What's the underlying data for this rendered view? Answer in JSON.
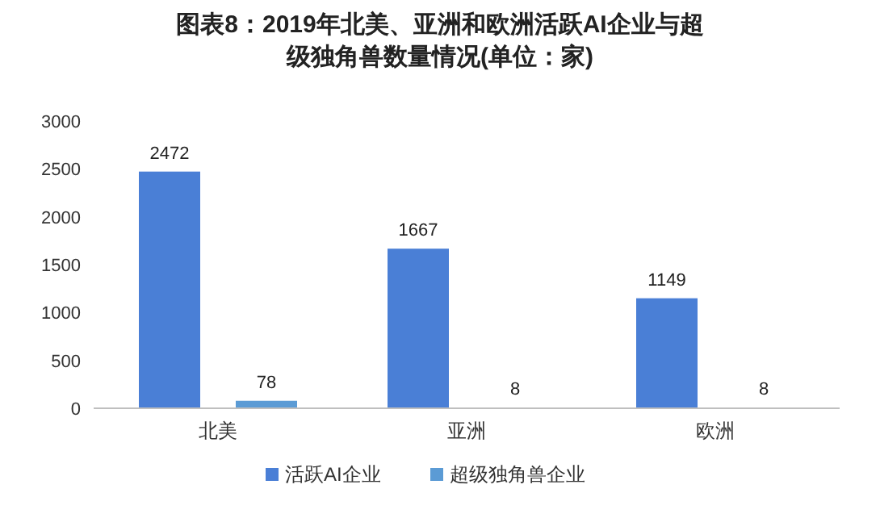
{
  "chart_data": {
    "type": "bar",
    "title": "图表8：2019年北美、亚洲和欧洲活跃AI企业与超级独角兽数量情况(单位：家)",
    "categories": [
      "北美",
      "亚洲",
      "欧洲"
    ],
    "series": [
      {
        "name": "活跃AI企业",
        "color": "#4a7fd6",
        "values": [
          2472,
          1667,
          1149
        ]
      },
      {
        "name": "超级独角兽企业",
        "color": "#5b9bd5",
        "values": [
          78,
          8,
          8
        ]
      }
    ],
    "ylim": [
      0,
      3000
    ],
    "yticks": [
      0,
      500,
      1000,
      1500,
      2000,
      2500,
      3000
    ],
    "data_labels": true,
    "legend": "bottom",
    "grid": false
  }
}
